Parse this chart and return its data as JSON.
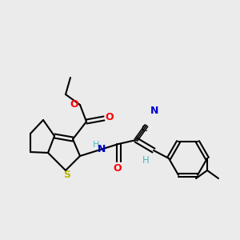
{
  "bg_color": "#ebebeb",
  "atom_colors": {
    "C": "#000000",
    "N": "#0000cc",
    "O": "#ff0000",
    "S": "#b8b800",
    "H": "#4db8b8"
  },
  "figsize": [
    3.0,
    3.0
  ],
  "dpi": 100
}
